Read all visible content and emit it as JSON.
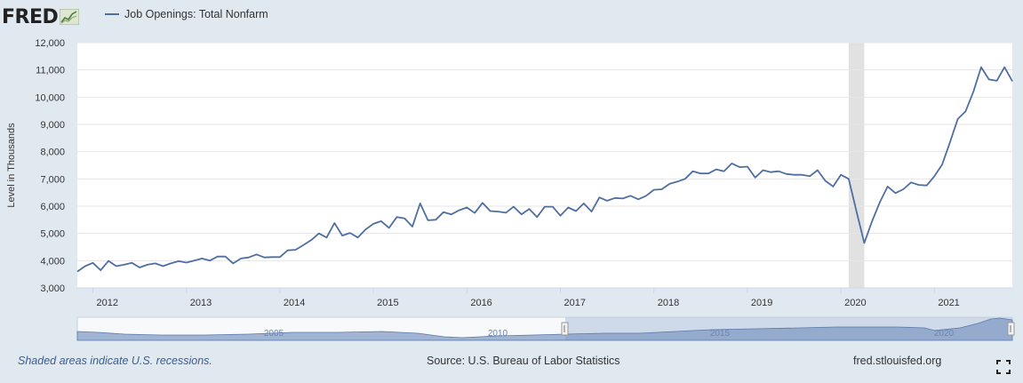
{
  "header": {
    "logo_text": "FRED",
    "legend_label": "Job Openings: Total Nonfarm"
  },
  "footer": {
    "recession_note": "Shaded areas indicate U.S. recessions.",
    "source": "Source: U.S. Bureau of Labor Statistics",
    "site": "fred.stlouisfed.org"
  },
  "icons": {
    "fullscreen": "fullscreen-icon",
    "logo_graph": "fred-graph-icon"
  },
  "colors": {
    "line": "#4f6ea1",
    "background": "#e1e9f0",
    "plot_bg": "#ffffff",
    "recession": "#e1e1e1",
    "grid": "#e6e6e6"
  },
  "chart_data": {
    "type": "line",
    "title": "",
    "xlabel": "",
    "ylabel": "Level in Thousands",
    "series": [
      {
        "name": "Job Openings: Total Nonfarm",
        "points": [
          [
            "2011-11",
            3600
          ],
          [
            "2011-12",
            3800
          ],
          [
            "2012-01",
            3920
          ],
          [
            "2012-02",
            3650
          ],
          [
            "2012-03",
            3990
          ],
          [
            "2012-04",
            3800
          ],
          [
            "2012-05",
            3850
          ],
          [
            "2012-06",
            3920
          ],
          [
            "2012-07",
            3750
          ],
          [
            "2012-08",
            3850
          ],
          [
            "2012-09",
            3900
          ],
          [
            "2012-10",
            3800
          ],
          [
            "2012-11",
            3900
          ],
          [
            "2012-12",
            3980
          ],
          [
            "2013-01",
            3930
          ],
          [
            "2013-02",
            4000
          ],
          [
            "2013-03",
            4080
          ],
          [
            "2013-04",
            4000
          ],
          [
            "2013-05",
            4150
          ],
          [
            "2013-06",
            4150
          ],
          [
            "2013-07",
            3900
          ],
          [
            "2013-08",
            4080
          ],
          [
            "2013-09",
            4120
          ],
          [
            "2013-10",
            4230
          ],
          [
            "2013-11",
            4120
          ],
          [
            "2013-12",
            4130
          ],
          [
            "2014-01",
            4130
          ],
          [
            "2014-02",
            4380
          ],
          [
            "2014-03",
            4400
          ],
          [
            "2014-04",
            4570
          ],
          [
            "2014-05",
            4750
          ],
          [
            "2014-06",
            5000
          ],
          [
            "2014-07",
            4850
          ],
          [
            "2014-08",
            5380
          ],
          [
            "2014-09",
            4920
          ],
          [
            "2014-10",
            5020
          ],
          [
            "2014-11",
            4850
          ],
          [
            "2014-12",
            5150
          ],
          [
            "2015-01",
            5350
          ],
          [
            "2015-02",
            5450
          ],
          [
            "2015-03",
            5200
          ],
          [
            "2015-04",
            5600
          ],
          [
            "2015-05",
            5550
          ],
          [
            "2015-06",
            5250
          ],
          [
            "2015-07",
            6100
          ],
          [
            "2015-08",
            5480
          ],
          [
            "2015-09",
            5500
          ],
          [
            "2015-10",
            5780
          ],
          [
            "2015-11",
            5700
          ],
          [
            "2015-12",
            5850
          ],
          [
            "2016-01",
            5950
          ],
          [
            "2016-02",
            5750
          ],
          [
            "2016-03",
            6120
          ],
          [
            "2016-04",
            5820
          ],
          [
            "2016-05",
            5800
          ],
          [
            "2016-06",
            5760
          ],
          [
            "2016-07",
            5980
          ],
          [
            "2016-08",
            5700
          ],
          [
            "2016-09",
            5900
          ],
          [
            "2016-10",
            5600
          ],
          [
            "2016-11",
            5980
          ],
          [
            "2016-12",
            5980
          ],
          [
            "2017-01",
            5650
          ],
          [
            "2017-02",
            5950
          ],
          [
            "2017-03",
            5820
          ],
          [
            "2017-04",
            6100
          ],
          [
            "2017-05",
            5800
          ],
          [
            "2017-06",
            6320
          ],
          [
            "2017-07",
            6200
          ],
          [
            "2017-08",
            6300
          ],
          [
            "2017-09",
            6280
          ],
          [
            "2017-10",
            6380
          ],
          [
            "2017-11",
            6250
          ],
          [
            "2017-12",
            6380
          ],
          [
            "2018-01",
            6600
          ],
          [
            "2018-02",
            6620
          ],
          [
            "2018-03",
            6820
          ],
          [
            "2018-04",
            6900
          ],
          [
            "2018-05",
            7000
          ],
          [
            "2018-06",
            7280
          ],
          [
            "2018-07",
            7200
          ],
          [
            "2018-08",
            7200
          ],
          [
            "2018-09",
            7350
          ],
          [
            "2018-10",
            7280
          ],
          [
            "2018-11",
            7570
          ],
          [
            "2018-12",
            7430
          ],
          [
            "2019-01",
            7450
          ],
          [
            "2019-02",
            7050
          ],
          [
            "2019-03",
            7320
          ],
          [
            "2019-04",
            7250
          ],
          [
            "2019-05",
            7280
          ],
          [
            "2019-06",
            7180
          ],
          [
            "2019-07",
            7150
          ],
          [
            "2019-08",
            7150
          ],
          [
            "2019-09",
            7100
          ],
          [
            "2019-10",
            7320
          ],
          [
            "2019-11",
            6930
          ],
          [
            "2019-12",
            6720
          ],
          [
            "2020-01",
            7150
          ],
          [
            "2020-02",
            7000
          ],
          [
            "2020-03",
            5800
          ],
          [
            "2020-04",
            4650
          ],
          [
            "2020-05",
            5450
          ],
          [
            "2020-06",
            6150
          ],
          [
            "2020-07",
            6720
          ],
          [
            "2020-08",
            6480
          ],
          [
            "2020-09",
            6620
          ],
          [
            "2020-10",
            6870
          ],
          [
            "2020-11",
            6780
          ],
          [
            "2020-12",
            6760
          ],
          [
            "2021-01",
            7100
          ],
          [
            "2021-02",
            7530
          ],
          [
            "2021-03",
            8350
          ],
          [
            "2021-04",
            9200
          ],
          [
            "2021-05",
            9480
          ],
          [
            "2021-06",
            10200
          ],
          [
            "2021-07",
            11100
          ],
          [
            "2021-08",
            10650
          ],
          [
            "2021-09",
            10600
          ],
          [
            "2021-10",
            11100
          ],
          [
            "2021-11",
            10580
          ]
        ]
      }
    ],
    "x_range": [
      "2011-11",
      "2021-11"
    ],
    "x_ticks": [
      "2012",
      "2013",
      "2014",
      "2015",
      "2016",
      "2017",
      "2018",
      "2019",
      "2020",
      "2021"
    ],
    "ylim": [
      3000,
      12000
    ],
    "y_ticks": [
      "3,000",
      "4,000",
      "5,000",
      "6,000",
      "7,000",
      "8,000",
      "9,000",
      "10,000",
      "11,000",
      "12,000"
    ],
    "recessions": [
      [
        "2020-02",
        "2020-04"
      ]
    ],
    "grid": true,
    "legend_position": "top-left",
    "navigator_labels": [
      "2005",
      "2010",
      "2015",
      "2020"
    ]
  }
}
